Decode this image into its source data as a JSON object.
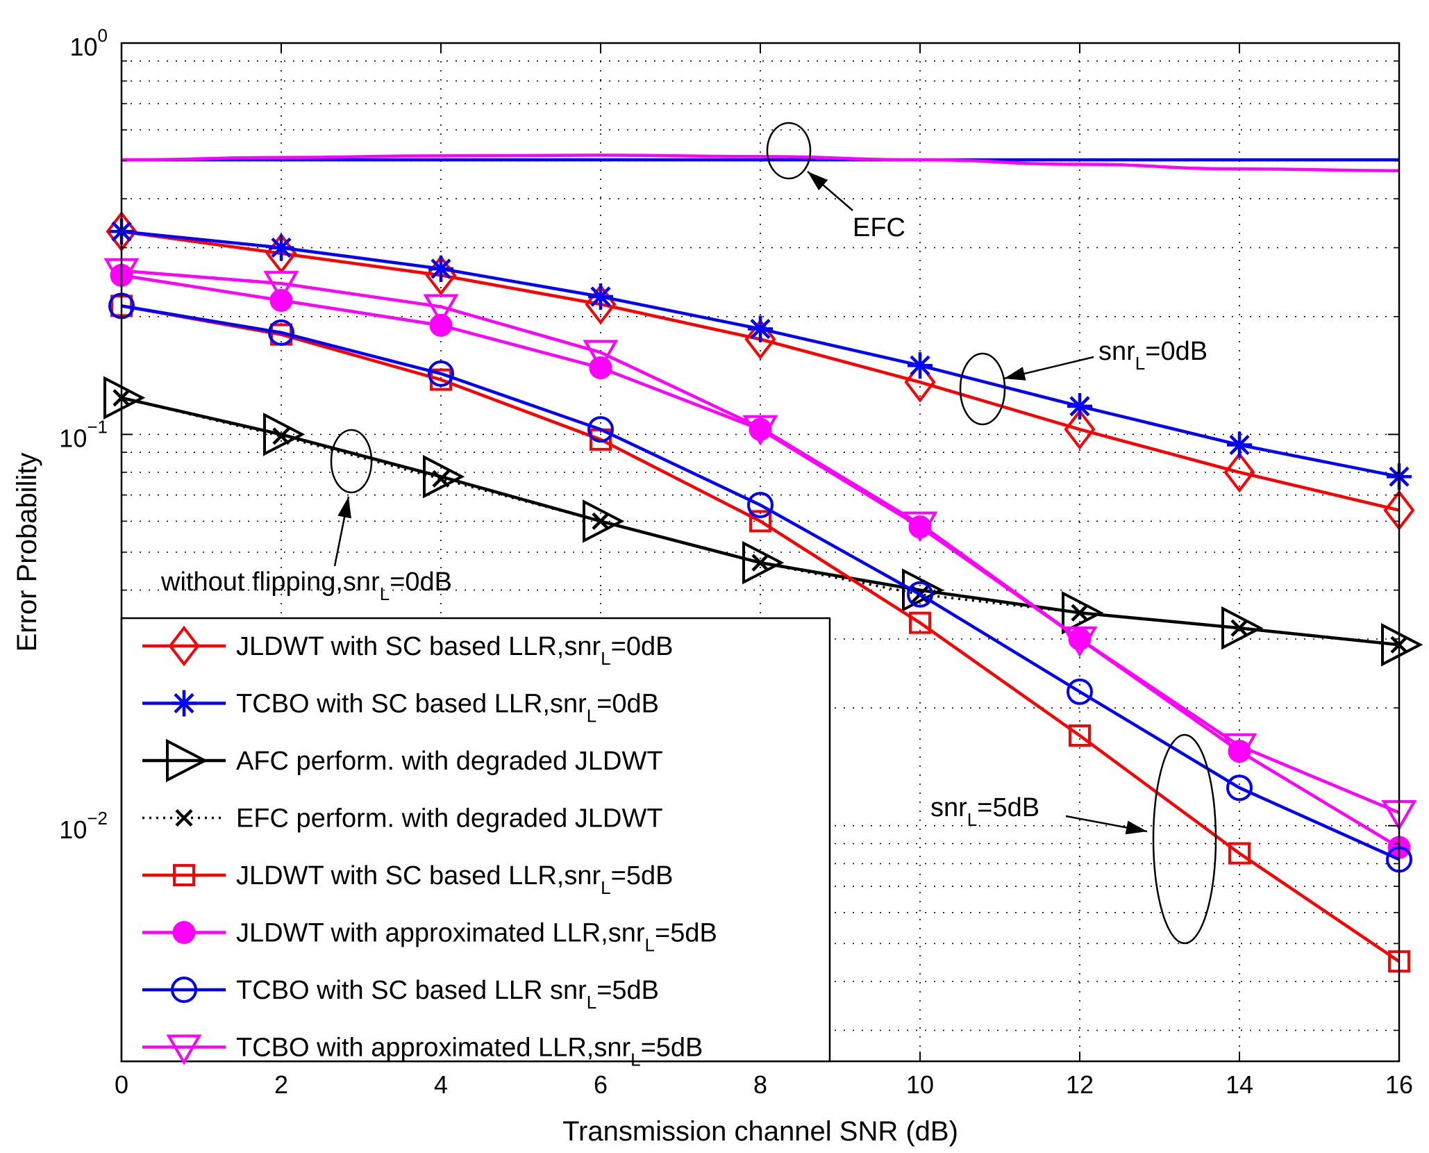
{
  "chart_data": {
    "type": "line",
    "title": "",
    "xlabel": "Transmission channel SNR (dB)",
    "ylabel": "Error Probability",
    "xlim": [
      0,
      16
    ],
    "ylim": [
      0.0025,
      1
    ],
    "yscale": "log",
    "grid": true,
    "x_ticks": [
      0,
      2,
      4,
      6,
      8,
      10,
      12,
      14,
      16
    ],
    "y_ticks": [
      {
        "value": 1,
        "base": "10",
        "exp": "0"
      },
      {
        "value": 0.1,
        "base": "10",
        "exp": "−1"
      },
      {
        "value": 0.01,
        "base": "10",
        "exp": "−2"
      }
    ],
    "legend_position": "bottom-left",
    "series": [
      {
        "name": "JLDWT with SC based LLR,snr",
        "sub": "L",
        "suffix": "=0dB",
        "color": "#ff0000",
        "marker": "diamond",
        "dash": "solid",
        "x": [
          0,
          2,
          4,
          6,
          8,
          10,
          12,
          14,
          16
        ],
        "values": [
          0.33,
          0.29,
          0.255,
          0.215,
          0.175,
          0.136,
          0.103,
          0.08,
          0.064
        ]
      },
      {
        "name": "TCBO with SC based LLR,snr",
        "sub": "L",
        "suffix": "=0dB",
        "color": "#0000ff",
        "marker": "asterisk",
        "dash": "solid",
        "x": [
          0,
          2,
          4,
          6,
          8,
          10,
          12,
          14,
          16
        ],
        "values": [
          0.33,
          0.3,
          0.265,
          0.225,
          0.186,
          0.15,
          0.118,
          0.094,
          0.078
        ]
      },
      {
        "name": "AFC perform. with degraded JLDWT",
        "sub": "",
        "suffix": "",
        "color": "#000000",
        "marker": "triangle-right",
        "dash": "solid",
        "x": [
          0,
          2,
          4,
          6,
          8,
          10,
          12,
          14,
          16
        ],
        "values": [
          0.124,
          0.1,
          0.078,
          0.06,
          0.047,
          0.04,
          0.035,
          0.032,
          0.029
        ]
      },
      {
        "name": "EFC perform. with degraded JLDWT",
        "sub": "",
        "suffix": "",
        "color": "#000000",
        "marker": "x",
        "dash": "dotted",
        "x": [
          0,
          2,
          4,
          6,
          8,
          10,
          12,
          14,
          16
        ],
        "values": [
          0.124,
          0.099,
          0.077,
          0.06,
          0.047,
          0.039,
          0.035,
          0.032,
          0.029
        ]
      },
      {
        "name": "JLDWT with SC based LLR,snr",
        "sub": "L",
        "suffix": "=5dB",
        "color": "#ff0000",
        "marker": "square",
        "dash": "solid",
        "x": [
          0,
          2,
          4,
          6,
          8,
          10,
          12,
          14,
          16
        ],
        "values": [
          0.213,
          0.18,
          0.138,
          0.097,
          0.06,
          0.033,
          0.017,
          0.0085,
          0.0045
        ]
      },
      {
        "name": "JLDWT with approximated LLR,snr",
        "sub": "L",
        "suffix": "=5dB",
        "color": "#ff00ff",
        "marker": "circle-filled",
        "dash": "solid",
        "x": [
          0,
          2,
          4,
          6,
          8,
          10,
          12,
          14,
          16
        ],
        "values": [
          0.255,
          0.22,
          0.19,
          0.148,
          0.103,
          0.058,
          0.03,
          0.0155,
          0.0088
        ]
      },
      {
        "name": "TCBO with SC based LLR snr",
        "sub": "L",
        "suffix": "=5dB",
        "color": "#0000ff",
        "marker": "circle",
        "dash": "solid",
        "x": [
          0,
          2,
          4,
          6,
          8,
          10,
          12,
          14,
          16
        ],
        "values": [
          0.213,
          0.182,
          0.143,
          0.103,
          0.066,
          0.039,
          0.022,
          0.0125,
          0.0082
        ]
      },
      {
        "name": "TCBO with approximated LLR,snr",
        "sub": "L",
        "suffix": "=5dB",
        "color": "#ff00ff",
        "marker": "triangle-down",
        "dash": "solid",
        "x": [
          0,
          2,
          4,
          6,
          8,
          10,
          12,
          14,
          16
        ],
        "values": [
          0.262,
          0.243,
          0.212,
          0.162,
          0.104,
          0.059,
          0.03,
          0.016,
          0.0108
        ]
      }
    ],
    "extra_lines": [
      {
        "name": "EFC curve (blue)",
        "color": "#0000ff",
        "x": [
          0,
          2,
          4,
          6,
          8,
          10,
          12,
          14,
          16
        ],
        "values": [
          0.503,
          0.503,
          0.503,
          0.503,
          0.503,
          0.503,
          0.503,
          0.503,
          0.503
        ]
      },
      {
        "name": "EFC curve (magenta)",
        "color": "#ff00ff",
        "x": [
          0,
          2,
          4,
          6,
          8,
          10,
          12,
          14,
          16
        ],
        "values": [
          0.503,
          0.51,
          0.515,
          0.517,
          0.513,
          0.503,
          0.49,
          0.477,
          0.472
        ]
      }
    ],
    "annotations": [
      {
        "id": "efc",
        "text": "EFC",
        "sub": "",
        "suffix": ""
      },
      {
        "id": "snr0",
        "text": "snr",
        "sub": "L",
        "suffix": "=0dB"
      },
      {
        "id": "noflip",
        "text": "without flipping,snr",
        "sub": "L",
        "suffix": "=0dB"
      },
      {
        "id": "snr5",
        "text": "snr",
        "sub": "L",
        "suffix": "=5dB"
      }
    ]
  }
}
